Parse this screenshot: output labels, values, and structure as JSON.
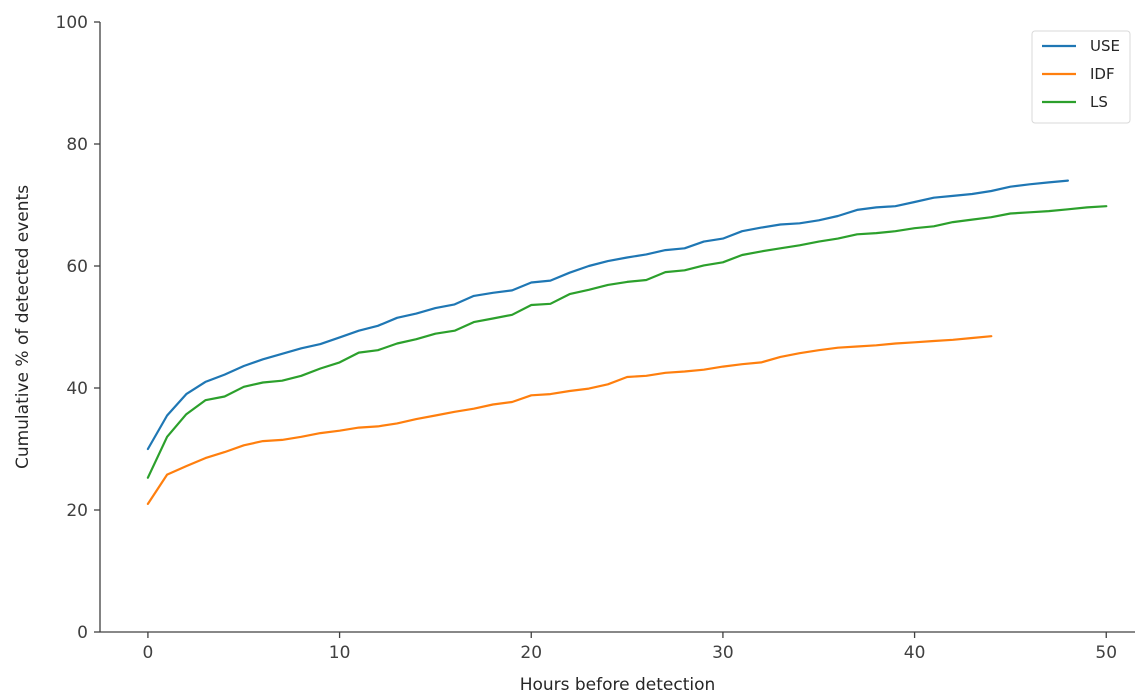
{
  "chart_data": {
    "type": "line",
    "title": "",
    "xlabel": "Hours before detection",
    "ylabel": "Cumulative % of detected events",
    "xlim": [
      -2.5,
      51.5
    ],
    "ylim": [
      0,
      100
    ],
    "xticks": [
      0,
      10,
      20,
      30,
      40,
      50
    ],
    "yticks": [
      0,
      20,
      40,
      60,
      80,
      100
    ],
    "grid": false,
    "legend_position": "top-right",
    "series": [
      {
        "name": "USE",
        "color": "#1f77b4",
        "x": [
          0,
          1,
          2,
          3,
          4,
          5,
          6,
          7,
          8,
          9,
          10,
          11,
          12,
          13,
          14,
          15,
          16,
          17,
          18,
          19,
          20,
          21,
          22,
          23,
          24,
          25,
          26,
          27,
          28,
          29,
          30,
          31,
          32,
          33,
          34,
          35,
          36,
          37,
          38,
          39,
          40,
          41,
          42,
          43,
          44,
          45,
          46,
          47,
          48
        ],
        "y": [
          30,
          35.5,
          39,
          41,
          42.2,
          43.6,
          44.7,
          45.6,
          46.5,
          47.2,
          48.3,
          49.4,
          50.2,
          51.5,
          52.2,
          53.1,
          53.7,
          55.1,
          55.6,
          56,
          57.3,
          57.6,
          58.9,
          60,
          60.8,
          61.4,
          61.9,
          62.6,
          62.9,
          64,
          64.5,
          65.7,
          66.3,
          66.8,
          67,
          67.5,
          68.2,
          69.2,
          69.6,
          69.8,
          70.5,
          71.2,
          71.5,
          71.8,
          72.3,
          73,
          73.4,
          73.7,
          74
        ]
      },
      {
        "name": "IDF",
        "color": "#ff7f0e",
        "x": [
          0,
          1,
          2,
          3,
          4,
          5,
          6,
          7,
          8,
          9,
          10,
          11,
          12,
          13,
          14,
          15,
          16,
          17,
          18,
          19,
          20,
          21,
          22,
          23,
          24,
          25,
          26,
          27,
          28,
          29,
          30,
          31,
          32,
          33,
          34,
          35,
          36,
          37,
          38,
          39,
          40,
          41,
          42,
          43,
          44
        ],
        "y": [
          21,
          25.8,
          27.2,
          28.5,
          29.5,
          30.6,
          31.3,
          31.5,
          32,
          32.6,
          33,
          33.5,
          33.7,
          34.2,
          34.9,
          35.5,
          36.1,
          36.6,
          37.3,
          37.7,
          38.8,
          39,
          39.5,
          39.9,
          40.6,
          41.8,
          42,
          42.5,
          42.7,
          43,
          43.5,
          43.9,
          44.2,
          45.1,
          45.7,
          46.2,
          46.6,
          46.8,
          47,
          47.3,
          47.5,
          47.7,
          47.9,
          48.2,
          48.5
        ]
      },
      {
        "name": "LS",
        "color": "#2ca02c",
        "x": [
          0,
          1,
          2,
          3,
          4,
          5,
          6,
          7,
          8,
          9,
          10,
          11,
          12,
          13,
          14,
          15,
          16,
          17,
          18,
          19,
          20,
          21,
          22,
          23,
          24,
          25,
          26,
          27,
          28,
          29,
          30,
          31,
          32,
          33,
          34,
          35,
          36,
          37,
          38,
          39,
          40,
          41,
          42,
          43,
          44,
          45,
          46,
          47,
          48,
          49,
          50
        ],
        "y": [
          25.3,
          32,
          35.7,
          38,
          38.6,
          40.2,
          40.9,
          41.2,
          42,
          43.2,
          44.2,
          45.8,
          46.2,
          47.3,
          48,
          48.9,
          49.4,
          50.8,
          51.4,
          52,
          53.6,
          53.8,
          55.4,
          56.1,
          56.9,
          57.4,
          57.7,
          59,
          59.3,
          60.1,
          60.6,
          61.8,
          62.4,
          62.9,
          63.4,
          64,
          64.5,
          65.2,
          65.4,
          65.7,
          66.2,
          66.5,
          67.2,
          67.6,
          68,
          68.6,
          68.8,
          69,
          69.3,
          69.6,
          69.8
        ]
      }
    ]
  }
}
